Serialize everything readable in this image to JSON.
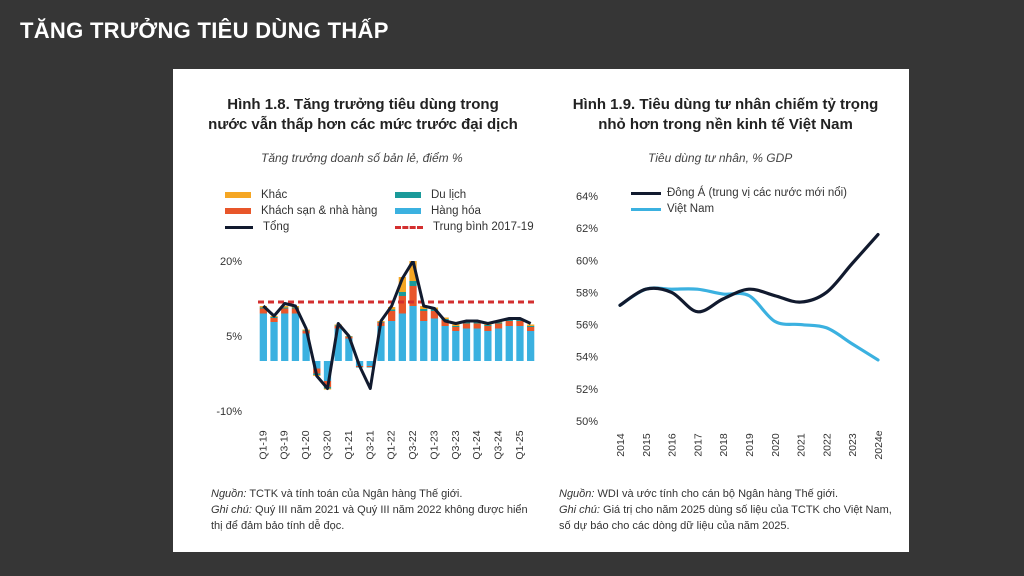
{
  "slide_title": "TĂNG TRƯỞNG TIÊU DÙNG THẤP",
  "colors": {
    "other": "#f5a623",
    "tourism": "#1a9a9a",
    "hotel": "#e8562a",
    "goods": "#3bb1e0",
    "total": "#111a2e",
    "avg": "#d32f2f",
    "eastasia": "#111a2e",
    "vietnam": "#3bb1e0"
  },
  "fig1": {
    "title_line1": "Hình 1.8. Tăng trưởng tiêu dùng trong",
    "title_line2": "nước vẫn thấp hơn các mức trước đại dịch",
    "subtitle": "Tăng trưởng doanh số bản lẻ, điểm %",
    "legend": {
      "other": "Khác",
      "tourism": "Du lịch",
      "hotel": "Khách sạn & nhà hàng",
      "goods": "Hàng hóa",
      "total": "Tổng",
      "avg": "Trung bình 2017-19"
    },
    "source_label": "Nguồn:",
    "source_text": " TCTK và tính toán của Ngân hàng Thế giới.",
    "note_label": "Ghi chú:",
    "note_text": " Quý III năm 2021 và Quý III năm 2022 không được hiển thị để đảm bảo tính dễ đọc."
  },
  "fig2": {
    "title_line1": "Hình 1.9. Tiêu dùng tư nhân chiếm tỷ trọng",
    "title_line2": "nhỏ hơn trong nền kinh tế Việt Nam",
    "subtitle": "Tiêu dùng tư nhân, % GDP",
    "legend": {
      "eastasia": "Đông Á (trung vị các nước mới nổi)",
      "vietnam": "Việt Nam"
    },
    "source_label": "Nguồn:",
    "source_text": " WDI và ước tính cho cán bộ Ngân hàng Thế giới.",
    "note_label": "Ghi chú:",
    "note_text": " Giá trị cho năm 2025 dùng số liệu của TCTK cho Việt Nam, số dự báo cho các dòng dữ liệu của năm 2025."
  },
  "chart_data": [
    {
      "type": "bar",
      "stacked": true,
      "categories": [
        "Q1-19",
        "Q2-19",
        "Q3-19",
        "Q4-19",
        "Q1-20",
        "Q2-20",
        "Q3-20",
        "Q4-20",
        "Q1-21",
        "Q2-21",
        "Q3-21",
        "Q4-21",
        "Q1-22",
        "Q2-22",
        "Q3-22",
        "Q4-22",
        "Q1-23",
        "Q2-23",
        "Q3-23",
        "Q4-23",
        "Q1-24",
        "Q2-24",
        "Q3-24",
        "Q4-24",
        "Q1-25",
        "Q2-25"
      ],
      "tick_labels": [
        "Q1-19",
        "Q3-19",
        "Q1-20",
        "Q3-20",
        "Q1-21",
        "Q3-21",
        "Q1-22",
        "Q3-22",
        "Q1-23",
        "Q3-23",
        "Q1-24",
        "Q3-24",
        "Q1-25"
      ],
      "series": [
        {
          "name": "Hàng hóa",
          "values": [
            9.5,
            7.8,
            9.5,
            9.5,
            5.5,
            -1.5,
            -4.0,
            6.5,
            4.5,
            -1.0,
            -1.0,
            7.0,
            8.0,
            9.5,
            11.0,
            8.0,
            8.5,
            7.0,
            6.0,
            6.5,
            6.5,
            6.0,
            6.5,
            7.0,
            7.0,
            6.0
          ]
        },
        {
          "name": "Khách sạn & nhà hàng",
          "values": [
            1.0,
            0.8,
            1.0,
            1.0,
            0.5,
            -1.0,
            -1.2,
            0.5,
            0.3,
            -0.2,
            -0.2,
            0.7,
            2.0,
            3.5,
            4.0,
            2.0,
            1.5,
            1.2,
            0.8,
            1.0,
            1.0,
            1.0,
            1.0,
            1.0,
            1.0,
            0.8
          ]
        },
        {
          "name": "Du lịch",
          "values": [
            0.2,
            0.2,
            0.2,
            0.2,
            0.1,
            -0.3,
            -0.3,
            0.1,
            0.1,
            -0.1,
            -0.1,
            0.1,
            0.3,
            0.8,
            1.0,
            0.4,
            0.3,
            0.2,
            0.2,
            0.2,
            0.2,
            0.2,
            0.2,
            0.2,
            0.2,
            0.2
          ]
        },
        {
          "name": "Khác",
          "values": [
            0.3,
            0.2,
            0.3,
            0.3,
            0.2,
            -0.2,
            -0.2,
            0.2,
            0.1,
            0.0,
            0.0,
            0.2,
            0.5,
            3.0,
            4.5,
            0.6,
            0.4,
            0.3,
            0.3,
            0.3,
            0.3,
            0.3,
            0.3,
            0.3,
            0.3,
            0.3
          ]
        }
      ],
      "line": {
        "name": "Tổng",
        "values": [
          11.0,
          9.0,
          11.5,
          11.0,
          6.5,
          -3.0,
          -5.5,
          7.5,
          5.0,
          -1.0,
          -5.5,
          8.0,
          11.0,
          16.5,
          20.0,
          11.0,
          10.5,
          8.0,
          7.5,
          8.0,
          8.0,
          7.5,
          8.0,
          8.5,
          8.5,
          7.5
        ]
      },
      "reference": {
        "name": "Trung bình 2017-19",
        "value": 11.8
      },
      "ylim": [
        -10,
        20
      ],
      "yticks": [
        "20%",
        "5%",
        "-10%"
      ]
    },
    {
      "type": "line",
      "x": [
        "2014",
        "2015",
        "2016",
        "2017",
        "2018",
        "2019",
        "2020",
        "2021",
        "2022",
        "2023",
        "2024e"
      ],
      "series": [
        {
          "name": "Đông Á (trung vị các nước mới nổi)",
          "values": [
            57.2,
            58.2,
            58.0,
            56.8,
            57.6,
            58.2,
            57.8,
            57.4,
            58.0,
            59.8,
            61.6
          ]
        },
        {
          "name": "Việt Nam",
          "values": [
            57.2,
            58.2,
            58.2,
            58.2,
            57.9,
            57.8,
            56.2,
            56.0,
            55.8,
            54.8,
            53.8
          ]
        }
      ],
      "ylim": [
        50,
        64
      ],
      "yticks": [
        "64%",
        "62%",
        "60%",
        "58%",
        "56%",
        "54%",
        "52%",
        "50%"
      ]
    }
  ]
}
